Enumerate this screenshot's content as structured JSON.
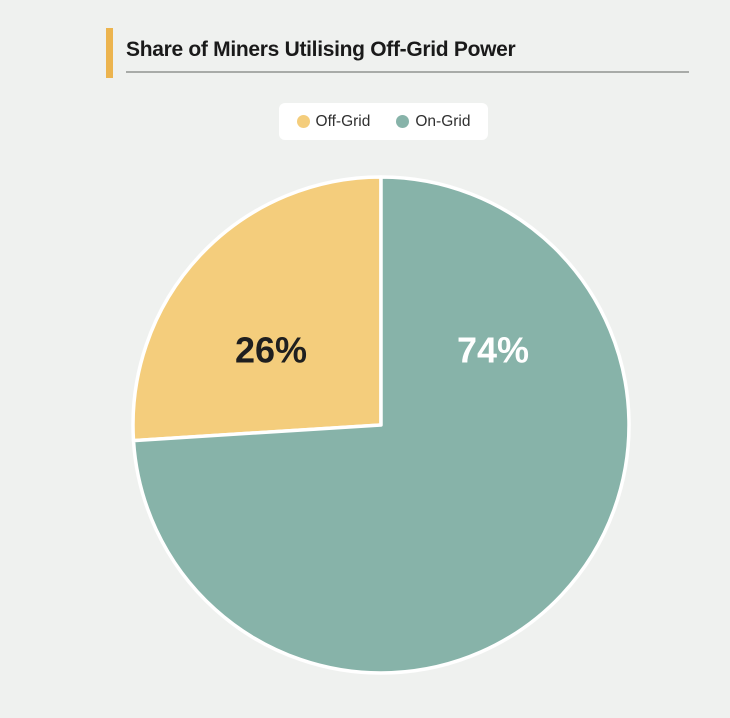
{
  "page": {
    "background": "#EFF1EF"
  },
  "header": {
    "title": "Share of Miners Utilising Off-Grid Power",
    "accent_color": "#ECB44E",
    "underline_color": "#A8ABA8"
  },
  "legend": {
    "items": [
      {
        "label": "Off-Grid",
        "color": "#F4CD7C"
      },
      {
        "label": "On-Grid",
        "color": "#87B3A9"
      }
    ]
  },
  "chart_data": {
    "type": "pie",
    "title": "Share of Miners Utilising Off-Grid Power",
    "segments": [
      {
        "label": "Off-Grid",
        "value": 26,
        "display": "26%",
        "color": "#F4CD7C",
        "text_color": "#1F1F1F",
        "label_xy": [
          271,
          350
        ]
      },
      {
        "label": "On-Grid",
        "value": 74,
        "display": "74%",
        "color": "#87B3A9",
        "text_color": "#FFFFFF",
        "label_xy": [
          493,
          350
        ]
      }
    ],
    "total": 100,
    "start_angle_deg": 266.4,
    "clockwise": true,
    "center_xy": [
      381,
      425
    ],
    "radius": 248,
    "stroke": {
      "color": "#FFFFFF",
      "width": 3.5
    },
    "legend_position": "top"
  }
}
